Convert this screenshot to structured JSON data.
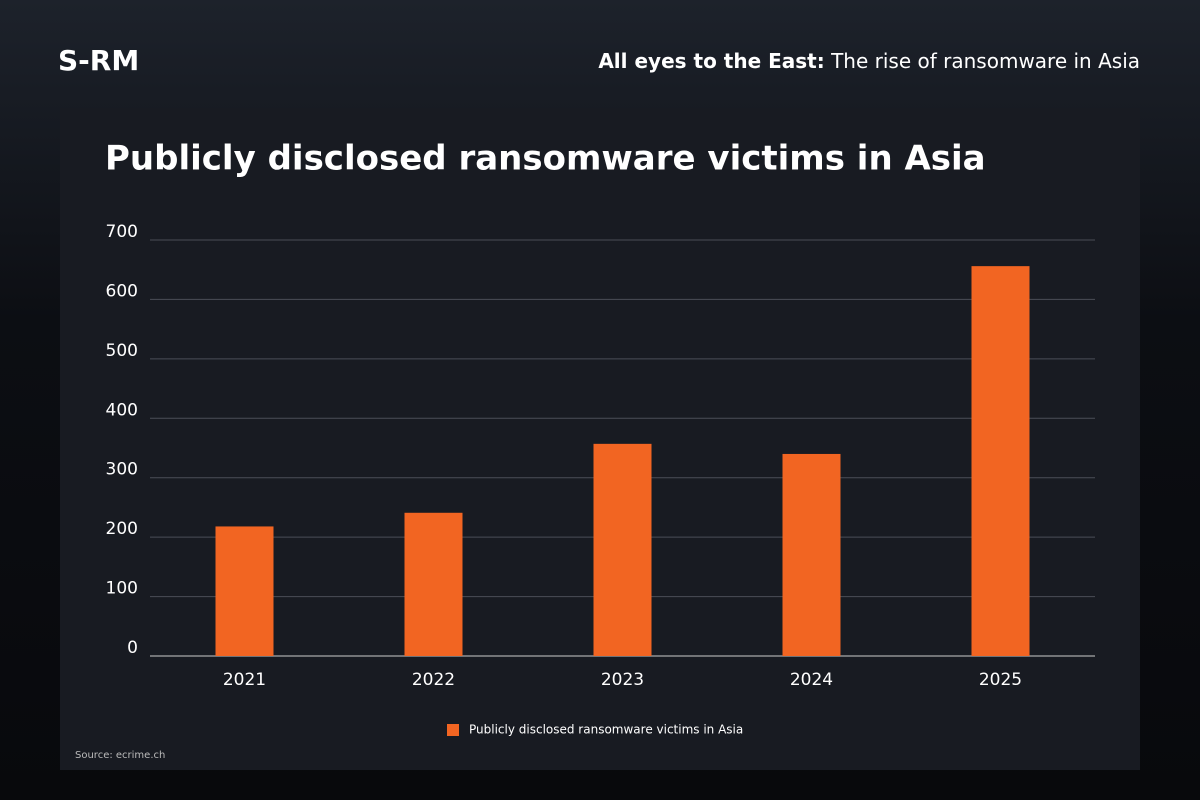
{
  "header": {
    "logo": "S-RM",
    "tagline_bold": "All eyes to the East:",
    "tagline": "The rise of ransomware in Asia"
  },
  "chart_data": {
    "type": "bar",
    "title": "Publicly disclosed ransomware victims in Asia",
    "categories": [
      "2021",
      "2022",
      "2023",
      "2024",
      "2025"
    ],
    "series": [
      {
        "name": "Publicly disclosed ransomware victims in Asia",
        "color": "#f26522",
        "values": [
          218,
          241,
          357,
          340,
          656
        ]
      }
    ],
    "ylim": [
      0,
      700
    ],
    "yticks": [
      0,
      100,
      200,
      300,
      400,
      500,
      600,
      700
    ],
    "grid": true,
    "legend": "bottom"
  },
  "source": "Source: ecrime.ch"
}
